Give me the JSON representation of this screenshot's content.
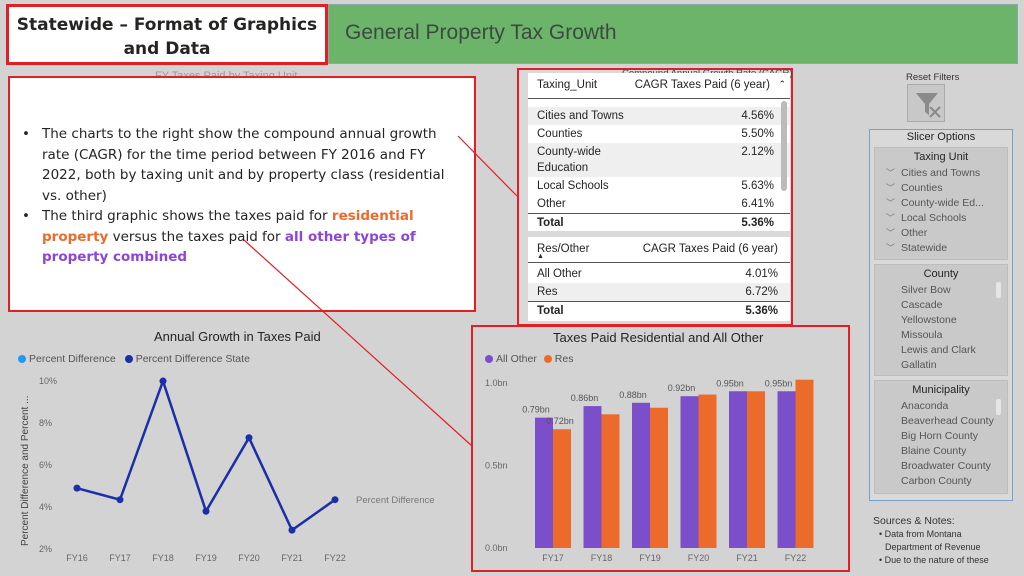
{
  "slide": {
    "title": "Statewide – Format of Graphics and Data",
    "banner_title": "General Property Tax Growth",
    "ghost_text": "FY Taxes Paid by Taxing Unit"
  },
  "textbox": {
    "bullet1": "The charts to the right show the compound annual growth rate (CAGR) for the time period between FY 2016 and FY 2022, both by taxing unit and by property class (residential vs. other)",
    "bullet2_a": "The third graphic shows the taxes paid for ",
    "bullet2_orange": "residential property",
    "bullet2_b": " versus the taxes paid for ",
    "bullet2_purple": "all other types of property combined"
  },
  "cagr_table": {
    "caption": "Compound Annual Growth Rate (CAGR)",
    "col1": "Taxing_Unit",
    "col2": "CAGR Taxes Paid (6 year)",
    "rows": [
      {
        "label": "Cities and Towns",
        "value": "4.56%"
      },
      {
        "label": "Counties",
        "value": "5.50%"
      },
      {
        "label": "County-wide Education",
        "value": "2.12%"
      },
      {
        "label": "Local Schools",
        "value": "5.63%"
      },
      {
        "label": "Other",
        "value": "6.41%"
      }
    ],
    "total_label": "Total",
    "total_value": "5.36%"
  },
  "res_table": {
    "col1": "Res/Other",
    "col2": "CAGR Taxes Paid (6 year)",
    "rows": [
      {
        "label": "All Other",
        "value": "4.01%"
      },
      {
        "label": "Res",
        "value": "6.72%"
      }
    ],
    "total_label": "Total",
    "total_value": "5.36%"
  },
  "slicers": {
    "reset_label": "Reset Filters",
    "options_title": "Slicer Options",
    "taxing_unit": {
      "title": "Taxing Unit",
      "items": [
        "Cities and Towns",
        "Counties",
        "County-wide Ed...",
        "Local Schools",
        "Other",
        "Statewide"
      ]
    },
    "county": {
      "title": "County",
      "items": [
        "Silver Bow",
        "Cascade",
        "Yellowstone",
        "Missoula",
        "Lewis and Clark",
        "Gallatin"
      ]
    },
    "municipality": {
      "title": "Municipality",
      "items": [
        "Anaconda",
        "Beaverhead County",
        "Big Horn County",
        "Blaine County",
        "Broadwater County",
        "Carbon County"
      ]
    }
  },
  "notes": {
    "title": "Sources & Notes:",
    "line1": "• Data from Montana",
    "line2": "Department of Revenue",
    "line3": "• Due to the nature of these"
  },
  "colors": {
    "all_other": "#7b4fc9",
    "res": "#ec6b2a",
    "pct_diff": "#1f9bef",
    "pct_diff_state": "#1a2fa8",
    "highlight": "#e31e24"
  },
  "chart_data": [
    {
      "type": "line",
      "title": "Annual Growth in Taxes Paid",
      "ylabel": "Percent Difference and Percent ...",
      "legend": [
        "Percent Difference",
        "Percent Difference State"
      ],
      "line_label": "Percent Difference",
      "categories": [
        "FY16",
        "FY17",
        "FY18",
        "FY19",
        "FY20",
        "FY21",
        "FY22"
      ],
      "series": [
        {
          "name": "Percent Difference State",
          "values": [
            4.85,
            4.3,
            9.95,
            3.75,
            7.25,
            2.85,
            4.3
          ]
        }
      ],
      "yticks": [
        "2%",
        "4%",
        "6%",
        "8%",
        "10%"
      ],
      "ylim": [
        2,
        10
      ]
    },
    {
      "type": "bar",
      "title": "Taxes Paid Residential and All Other",
      "legend": [
        "All Other",
        "Res"
      ],
      "categories": [
        "FY17",
        "FY18",
        "FY19",
        "FY20",
        "FY21",
        "FY22"
      ],
      "series": [
        {
          "name": "All Other",
          "values": [
            0.79,
            0.86,
            0.88,
            0.92,
            0.95,
            0.95
          ],
          "labels": [
            "0.79bn",
            "0.86bn",
            "0.88bn",
            "0.92bn",
            "0.95bn",
            "0.95bn"
          ]
        },
        {
          "name": "Res",
          "values": [
            0.72,
            0.81,
            0.85,
            0.93,
            0.95,
            1.02
          ],
          "labels": [
            "0.72bn",
            "",
            "",
            "",
            "",
            ""
          ]
        }
      ],
      "yticks": [
        "0.0bn",
        "0.5bn",
        "1.0bn"
      ],
      "ylim": [
        0,
        1.0
      ]
    }
  ]
}
